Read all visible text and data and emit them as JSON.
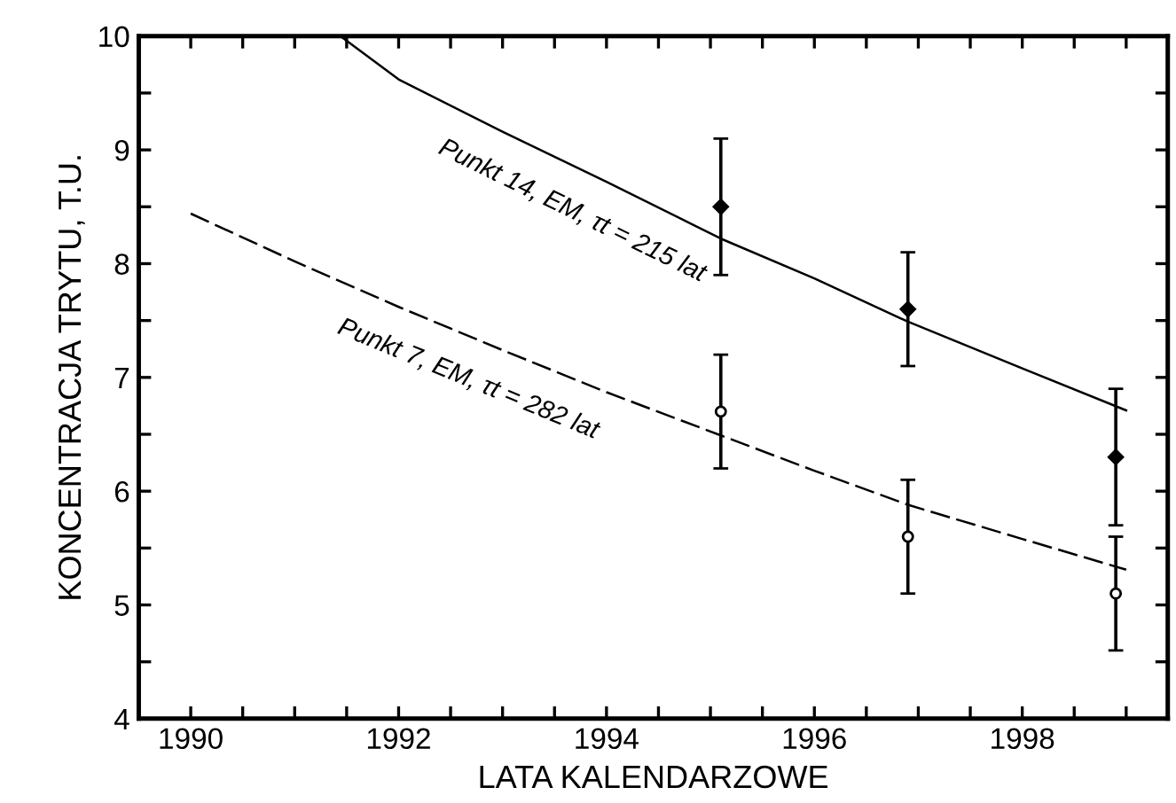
{
  "chart_data": {
    "type": "scatter",
    "xlabel": "LATA KALENDARZOWE",
    "ylabel": "KONCENTRACJA TRYTU, T.U.",
    "xlim": [
      1989.5,
      1999.4
    ],
    "ylim": [
      4,
      10
    ],
    "xticks": [
      1990,
      {
        "value": 1990.5,
        "label": null
      },
      {
        "value": 1991,
        "label": null
      },
      {
        "value": 1991.5,
        "label": null
      },
      1992,
      {
        "value": 1992.5,
        "label": null
      },
      {
        "value": 1993,
        "label": null
      },
      {
        "value": 1993.5,
        "label": null
      },
      1994,
      {
        "value": 1994.5,
        "label": null
      },
      {
        "value": 1995,
        "label": null
      },
      {
        "value": 1995.5,
        "label": null
      },
      1996,
      {
        "value": 1996.5,
        "label": null
      },
      {
        "value": 1997,
        "label": null
      },
      {
        "value": 1997.5,
        "label": null
      },
      1998,
      {
        "value": 1998.5,
        "label": null
      },
      {
        "value": 1999,
        "label": null
      }
    ],
    "yticks": [
      4,
      {
        "value": 4.5,
        "label": null
      },
      5,
      {
        "value": 5.5,
        "label": null
      },
      6,
      {
        "value": 6.5,
        "label": null
      },
      7,
      {
        "value": 7.5,
        "label": null
      },
      8,
      {
        "value": 8.5,
        "label": null
      },
      9,
      {
        "value": 9.5,
        "label": null
      },
      10
    ],
    "grid": false,
    "series": [
      {
        "type": "line",
        "color": "#000000",
        "line_style": "solid",
        "marker": "none",
        "x": [
          1991.44,
          1992,
          1993,
          1994,
          1995.1,
          1996,
          1996.9,
          1998,
          1999
        ],
        "values": [
          10,
          9.62,
          9.16,
          8.72,
          8.22,
          7.87,
          7.49,
          7.08,
          6.71
        ]
      },
      {
        "type": "line",
        "color": "#000000",
        "line_style": "dashed",
        "marker": "none",
        "x": [
          1990,
          1991,
          1992,
          1993,
          1994,
          1995.1,
          1996,
          1996.9,
          1998,
          1999
        ],
        "values": [
          8.44,
          8.02,
          7.62,
          7.24,
          6.87,
          6.49,
          6.18,
          5.88,
          5.58,
          5.31
        ]
      },
      {
        "color": "#000000",
        "marker": "diamond",
        "x": [
          1995.1,
          1996.9,
          1998.9
        ],
        "values": [
          8.5,
          7.6,
          6.3
        ],
        "errors": [
          0.6,
          0.5,
          0.6
        ]
      },
      {
        "color": "#000000",
        "marker": "circle",
        "x": [
          1995.1,
          1996.9,
          1998.9
        ],
        "values": [
          6.7,
          5.6,
          5.1
        ],
        "errors": [
          0.5,
          0.5,
          0.5
        ]
      }
    ],
    "annotations": [
      "Punkt 14, EM, τt = 215 lat",
      "Punkt 7, EM, τt = 282 lat"
    ]
  }
}
